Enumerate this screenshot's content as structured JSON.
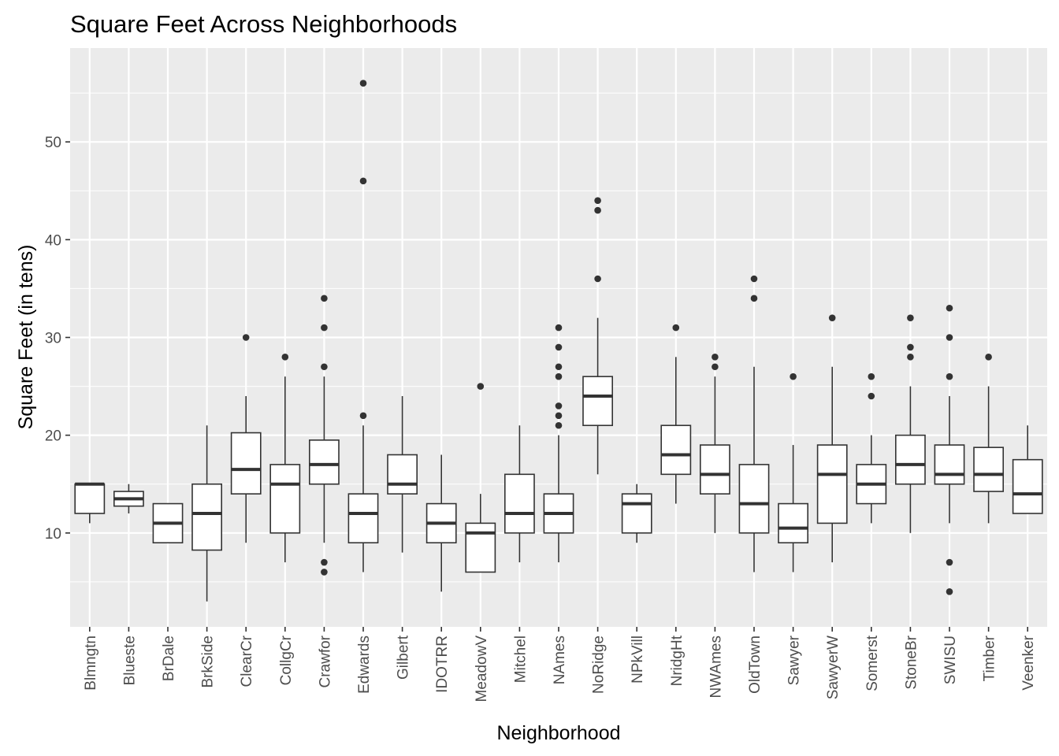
{
  "chart_data": {
    "type": "boxplot",
    "title": "Square Feet Across Neighborhoods",
    "xlabel": "Neighborhood",
    "ylabel": "Square Feet (in tens)",
    "ylim": [
      0.4,
      59.6
    ],
    "yticks": [
      10,
      20,
      30,
      40,
      50
    ],
    "grid": true,
    "legend": "none",
    "colors": {
      "panel": "#ebebeb",
      "grid": "#ffffff",
      "box_fill": "#ffffff",
      "box_line": "#333333",
      "outlier": "#333333"
    },
    "series": [
      {
        "category": "Blmngtn",
        "min": 11,
        "q1": 12,
        "median": 15,
        "q3": 15,
        "max": 15,
        "outliers": []
      },
      {
        "category": "Blueste",
        "min": 12,
        "q1": 12.75,
        "median": 13.5,
        "q3": 14.25,
        "max": 15,
        "outliers": []
      },
      {
        "category": "BrDale",
        "min": 9,
        "q1": 9,
        "median": 11,
        "q3": 13,
        "max": 13,
        "outliers": []
      },
      {
        "category": "BrkSide",
        "min": 3,
        "q1": 8.25,
        "median": 12,
        "q3": 15,
        "max": 21,
        "outliers": []
      },
      {
        "category": "ClearCr",
        "min": 9,
        "q1": 14,
        "median": 16.5,
        "q3": 20.25,
        "max": 24,
        "outliers": [
          30
        ]
      },
      {
        "category": "CollgCr",
        "min": 7,
        "q1": 10,
        "median": 15,
        "q3": 17,
        "max": 26,
        "outliers": [
          28
        ]
      },
      {
        "category": "Crawfor",
        "min": 9,
        "q1": 15,
        "median": 17,
        "q3": 19.5,
        "max": 26,
        "outliers": [
          6,
          7,
          27,
          31,
          34
        ]
      },
      {
        "category": "Edwards",
        "min": 6,
        "q1": 9,
        "median": 12,
        "q3": 14,
        "max": 21,
        "outliers": [
          22,
          46,
          56
        ]
      },
      {
        "category": "Gilbert",
        "min": 8,
        "q1": 14,
        "median": 15,
        "q3": 18,
        "max": 24,
        "outliers": []
      },
      {
        "category": "IDOTRR",
        "min": 4,
        "q1": 9,
        "median": 11,
        "q3": 13,
        "max": 18,
        "outliers": []
      },
      {
        "category": "MeadowV",
        "min": 6,
        "q1": 6,
        "median": 10,
        "q3": 11,
        "max": 14,
        "outliers": [
          25
        ]
      },
      {
        "category": "Mitchel",
        "min": 7,
        "q1": 10,
        "median": 12,
        "q3": 16,
        "max": 21,
        "outliers": []
      },
      {
        "category": "NAmes",
        "min": 7,
        "q1": 10,
        "median": 12,
        "q3": 14,
        "max": 20,
        "outliers": [
          21,
          22,
          23,
          26,
          27,
          29,
          31
        ]
      },
      {
        "category": "NoRidge",
        "min": 16,
        "q1": 21,
        "median": 24,
        "q3": 26,
        "max": 32,
        "outliers": [
          36,
          43,
          44
        ]
      },
      {
        "category": "NPkVill",
        "min": 9,
        "q1": 10,
        "median": 13,
        "q3": 14,
        "max": 15,
        "outliers": []
      },
      {
        "category": "NridgHt",
        "min": 13,
        "q1": 16,
        "median": 18,
        "q3": 21,
        "max": 28,
        "outliers": [
          31
        ]
      },
      {
        "category": "NWAmes",
        "min": 10,
        "q1": 14,
        "median": 16,
        "q3": 19,
        "max": 26,
        "outliers": [
          27,
          28
        ]
      },
      {
        "category": "OldTown",
        "min": 6,
        "q1": 10,
        "median": 13,
        "q3": 17,
        "max": 27,
        "outliers": [
          34,
          36
        ]
      },
      {
        "category": "Sawyer",
        "min": 6,
        "q1": 9,
        "median": 10.5,
        "q3": 13,
        "max": 19,
        "outliers": [
          26
        ]
      },
      {
        "category": "SawyerW",
        "min": 7,
        "q1": 11,
        "median": 16,
        "q3": 19,
        "max": 27,
        "outliers": [
          32
        ]
      },
      {
        "category": "Somerst",
        "min": 11,
        "q1": 13,
        "median": 15,
        "q3": 17,
        "max": 20,
        "outliers": [
          24,
          26
        ]
      },
      {
        "category": "StoneBr",
        "min": 10,
        "q1": 15,
        "median": 17,
        "q3": 20,
        "max": 25,
        "outliers": [
          28,
          29,
          32
        ]
      },
      {
        "category": "SWISU",
        "min": 11,
        "q1": 15,
        "median": 16,
        "q3": 19,
        "max": 24,
        "outliers": [
          4,
          7,
          26,
          30,
          33
        ]
      },
      {
        "category": "Timber",
        "min": 11,
        "q1": 14.25,
        "median": 16,
        "q3": 18.75,
        "max": 25,
        "outliers": [
          28
        ]
      },
      {
        "category": "Veenker",
        "min": 12,
        "q1": 12,
        "median": 14,
        "q3": 17.5,
        "max": 21,
        "outliers": []
      }
    ]
  }
}
